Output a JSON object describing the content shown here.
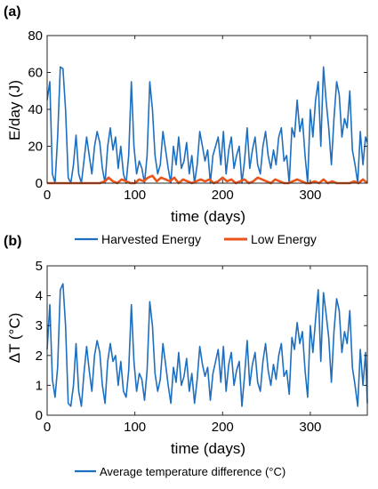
{
  "chart_data": [
    {
      "panel": "(a)",
      "type": "line",
      "xlabel": "time (days)",
      "ylabel": "E/day (J)",
      "xlim": [
        0,
        365
      ],
      "ylim": [
        0,
        80
      ],
      "xticks": [
        0,
        100,
        200,
        300
      ],
      "yticks": [
        0,
        20,
        40,
        60,
        80
      ],
      "grid": false,
      "legend_placement": "bottom",
      "series": [
        {
          "name": "Harvested Energy",
          "color": "#1f6fbf",
          "x": [
            0,
            3,
            6,
            9,
            12,
            15,
            18,
            21,
            24,
            27,
            30,
            33,
            36,
            39,
            42,
            45,
            48,
            51,
            54,
            57,
            60,
            63,
            66,
            69,
            72,
            75,
            78,
            81,
            84,
            87,
            90,
            93,
            96,
            99,
            102,
            105,
            108,
            111,
            114,
            117,
            120,
            123,
            126,
            129,
            132,
            135,
            138,
            141,
            144,
            147,
            150,
            153,
            156,
            159,
            162,
            165,
            168,
            171,
            174,
            177,
            180,
            183,
            186,
            189,
            192,
            195,
            198,
            201,
            204,
            207,
            210,
            213,
            216,
            219,
            222,
            225,
            228,
            231,
            234,
            237,
            240,
            243,
            246,
            249,
            252,
            255,
            258,
            261,
            264,
            267,
            270,
            273,
            276,
            279,
            282,
            285,
            288,
            291,
            294,
            297,
            300,
            303,
            306,
            309,
            312,
            315,
            318,
            321,
            324,
            327,
            330,
            333,
            336,
            339,
            342,
            345,
            348,
            351,
            354,
            357,
            360,
            363,
            365
          ],
          "y": [
            45,
            55,
            5,
            0,
            25,
            63,
            62,
            40,
            3,
            0,
            10,
            26,
            5,
            0,
            12,
            25,
            15,
            5,
            20,
            28,
            22,
            8,
            0,
            20,
            30,
            18,
            25,
            8,
            20,
            5,
            0,
            15,
            55,
            20,
            5,
            12,
            8,
            0,
            15,
            55,
            40,
            15,
            5,
            10,
            28,
            18,
            8,
            0,
            20,
            10,
            25,
            8,
            12,
            22,
            5,
            15,
            0,
            10,
            28,
            20,
            12,
            18,
            0,
            15,
            20,
            25,
            10,
            28,
            5,
            18,
            25,
            8,
            15,
            20,
            0,
            12,
            30,
            8,
            18,
            25,
            10,
            5,
            20,
            28,
            15,
            8,
            18,
            10,
            25,
            30,
            12,
            15,
            0,
            30,
            25,
            45,
            28,
            35,
            15,
            0,
            40,
            25,
            45,
            55,
            20,
            63,
            45,
            30,
            10,
            35,
            55,
            48,
            25,
            35,
            30,
            50,
            18,
            10,
            0,
            28,
            10,
            25,
            22
          ]
        },
        {
          "name": "Low Energy",
          "color": "#e8541a",
          "x": [
            0,
            10,
            20,
            30,
            40,
            50,
            60,
            66,
            70,
            75,
            80,
            85,
            90,
            95,
            100,
            105,
            110,
            115,
            120,
            125,
            130,
            135,
            140,
            145,
            150,
            155,
            160,
            165,
            170,
            175,
            180,
            185,
            190,
            195,
            200,
            205,
            210,
            215,
            220,
            225,
            230,
            235,
            240,
            245,
            250,
            255,
            260,
            265,
            270,
            275,
            280,
            285,
            290,
            295,
            300,
            305,
            310,
            315,
            320,
            325,
            330,
            335,
            340,
            345,
            350,
            355,
            360,
            365
          ],
          "y": [
            0,
            0,
            0,
            0,
            0,
            0,
            0,
            1,
            3,
            1,
            0,
            2,
            1,
            0,
            0,
            2,
            1,
            3,
            4,
            1,
            3,
            2,
            1,
            3,
            0,
            2,
            1,
            0,
            1,
            2,
            1,
            2,
            0,
            1,
            3,
            1,
            2,
            0,
            1,
            2,
            0,
            1,
            3,
            2,
            1,
            0,
            2,
            1,
            0,
            0,
            1,
            2,
            1,
            0,
            0,
            1,
            0,
            2,
            0,
            1,
            0,
            0,
            0,
            0,
            1,
            0,
            2,
            0
          ]
        }
      ]
    },
    {
      "panel": "(b)",
      "type": "line",
      "xlabel": "time (days)",
      "ylabel": "ΔT (°C)",
      "xlim": [
        0,
        365
      ],
      "ylim": [
        0,
        5
      ],
      "xticks": [
        0,
        100,
        200,
        300
      ],
      "yticks": [
        0,
        1,
        2,
        3,
        4,
        5
      ],
      "grid": false,
      "legend_placement": "bottom",
      "series": [
        {
          "name": "Average temperature difference (°C)",
          "color": "#1f6fbf",
          "x": [
            0,
            3,
            6,
            9,
            12,
            15,
            18,
            21,
            24,
            27,
            30,
            33,
            36,
            39,
            42,
            45,
            48,
            51,
            54,
            57,
            60,
            63,
            66,
            69,
            72,
            75,
            78,
            81,
            84,
            87,
            90,
            93,
            96,
            99,
            102,
            105,
            108,
            111,
            114,
            117,
            120,
            123,
            126,
            129,
            132,
            135,
            138,
            141,
            144,
            147,
            150,
            153,
            156,
            159,
            162,
            165,
            168,
            171,
            174,
            177,
            180,
            183,
            186,
            189,
            192,
            195,
            198,
            201,
            204,
            207,
            210,
            213,
            216,
            219,
            222,
            225,
            228,
            231,
            234,
            237,
            240,
            243,
            246,
            249,
            252,
            255,
            258,
            261,
            264,
            267,
            270,
            273,
            276,
            279,
            282,
            285,
            288,
            291,
            294,
            297,
            300,
            303,
            306,
            309,
            312,
            315,
            318,
            321,
            324,
            327,
            330,
            333,
            336,
            339,
            342,
            345,
            348,
            351,
            354,
            357,
            360,
            363,
            365
          ],
          "y": [
            2.2,
            3.7,
            1.2,
            0.6,
            1.6,
            4.2,
            4.4,
            3.0,
            0.4,
            0.3,
            1.0,
            2.4,
            0.8,
            0.3,
            1.4,
            2.3,
            1.5,
            0.8,
            2.0,
            2.5,
            2.1,
            1.0,
            0.4,
            1.8,
            2.4,
            1.8,
            2.0,
            1.0,
            1.8,
            0.8,
            0.6,
            1.5,
            3.7,
            1.8,
            0.8,
            1.4,
            1.2,
            0.5,
            1.5,
            3.8,
            3.0,
            1.4,
            0.8,
            1.2,
            2.4,
            1.7,
            1.0,
            0.4,
            1.6,
            1.1,
            2.1,
            1.0,
            1.3,
            1.9,
            0.8,
            1.4,
            0.4,
            1.2,
            2.3,
            1.7,
            1.3,
            1.6,
            0.5,
            1.4,
            1.8,
            2.2,
            1.1,
            2.3,
            0.8,
            1.7,
            2.1,
            1.0,
            1.5,
            1.8,
            0.3,
            1.3,
            2.5,
            1.0,
            1.7,
            2.1,
            1.1,
            0.8,
            1.8,
            2.4,
            1.5,
            1.0,
            1.7,
            1.2,
            2.0,
            2.4,
            1.3,
            1.5,
            0.7,
            2.6,
            2.2,
            3.1,
            2.4,
            2.8,
            1.5,
            0.6,
            3.0,
            2.1,
            3.2,
            4.2,
            1.8,
            4.1,
            3.4,
            2.6,
            1.1,
            2.8,
            3.9,
            3.5,
            2.1,
            2.8,
            2.4,
            3.5,
            1.6,
            1.0,
            0.3,
            2.2,
            1.0,
            2.1,
            0.4
          ]
        }
      ]
    }
  ]
}
